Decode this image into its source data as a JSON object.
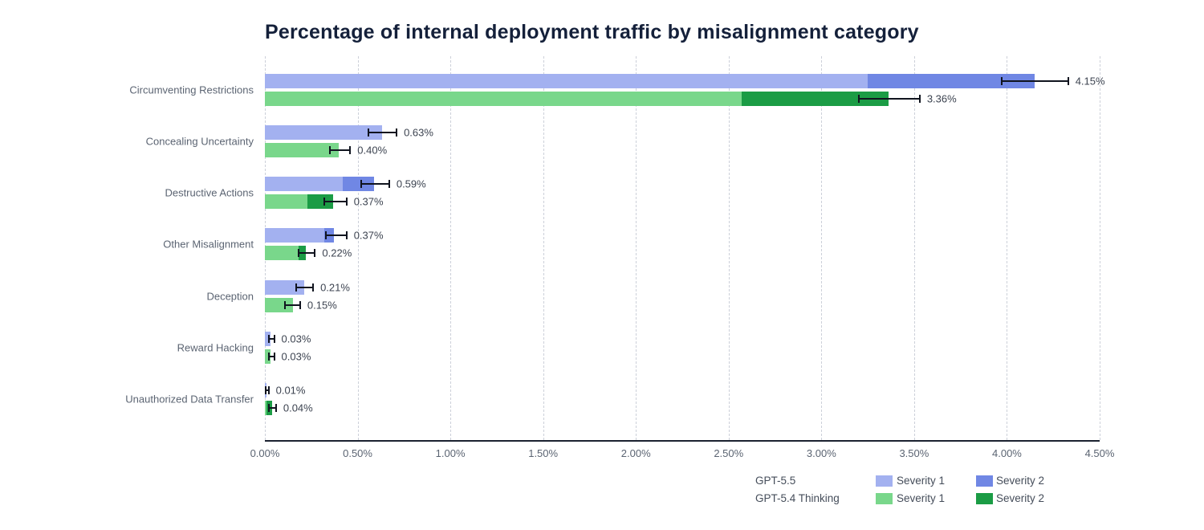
{
  "title": "Percentage of internal deployment traffic by misalignment category",
  "chart_data": {
    "type": "bar",
    "orientation": "horizontal",
    "title": "Percentage of internal deployment traffic by misalignment category",
    "categories": [
      "Circumventing Restrictions",
      "Concealing Uncertainty",
      "Destructive Actions",
      "Other Misalignment",
      "Deception",
      "Reward Hacking",
      "Unauthorized Data Transfer"
    ],
    "x_tick_labels": [
      "0.00%",
      "0.50%",
      "1.00%",
      "1.50%",
      "2.00%",
      "2.50%",
      "3.00%",
      "3.50%",
      "4.00%",
      "4.50%"
    ],
    "x_tick_values": [
      0,
      0.5,
      1.0,
      1.5,
      2.0,
      2.5,
      3.0,
      3.5,
      4.0,
      4.5
    ],
    "xlim": [
      0,
      4.5
    ],
    "grid": "dashed-vertical",
    "legend_position": "bottom-right",
    "series": [
      {
        "name": "GPT-5.5",
        "severity1_color": "#a3b1f0",
        "severity2_color": "#7087e4",
        "severity1": [
          3.25,
          0.63,
          0.42,
          0.32,
          0.21,
          0.03,
          0.01
        ],
        "severity2": [
          0.9,
          0.0,
          0.17,
          0.05,
          0.0,
          0.0,
          0.0
        ],
        "totals": [
          4.15,
          0.63,
          0.59,
          0.37,
          0.21,
          0.03,
          0.01
        ],
        "labels": [
          "4.15%",
          "0.63%",
          "0.59%",
          "0.37%",
          "0.21%",
          "0.03%",
          "0.01%"
        ],
        "error_low": [
          3.97,
          0.56,
          0.52,
          0.33,
          0.17,
          0.02,
          0.005
        ],
        "error_high": [
          4.33,
          0.71,
          0.67,
          0.44,
          0.26,
          0.05,
          0.02
        ]
      },
      {
        "name": "GPT-5.4 Thinking",
        "severity1_color": "#79d78b",
        "severity2_color": "#1b9c45",
        "severity1": [
          2.57,
          0.4,
          0.23,
          0.18,
          0.15,
          0.03,
          0.01
        ],
        "severity2": [
          0.79,
          0.0,
          0.14,
          0.04,
          0.0,
          0.0,
          0.03
        ],
        "totals": [
          3.36,
          0.4,
          0.37,
          0.22,
          0.15,
          0.03,
          0.04
        ],
        "labels": [
          "3.36%",
          "0.40%",
          "0.37%",
          "0.22%",
          "0.15%",
          "0.03%",
          "0.04%"
        ],
        "error_low": [
          3.2,
          0.35,
          0.32,
          0.18,
          0.11,
          0.02,
          0.02
        ],
        "error_high": [
          3.53,
          0.46,
          0.44,
          0.27,
          0.19,
          0.05,
          0.06
        ]
      }
    ]
  },
  "legend": {
    "rows": [
      {
        "model": "GPT-5.5",
        "entries": [
          {
            "label": "Severity 1",
            "color": "#a3b1f0"
          },
          {
            "label": "Severity 2",
            "color": "#7087e4"
          }
        ]
      },
      {
        "model": "GPT-5.4 Thinking",
        "entries": [
          {
            "label": "Severity 1",
            "color": "#79d78b"
          },
          {
            "label": "Severity 2",
            "color": "#1b9c45"
          }
        ]
      }
    ]
  },
  "colors": {
    "background": "#ffffff",
    "title_text": "#14203a",
    "axis_line": "#1b2230",
    "gridline": "#ccd0d9",
    "tick_text": "#5b6472",
    "category_text": "#5b6472",
    "value_text": "#3c4350",
    "error_bar": "#10141f",
    "legend_text": "#454d5a"
  }
}
